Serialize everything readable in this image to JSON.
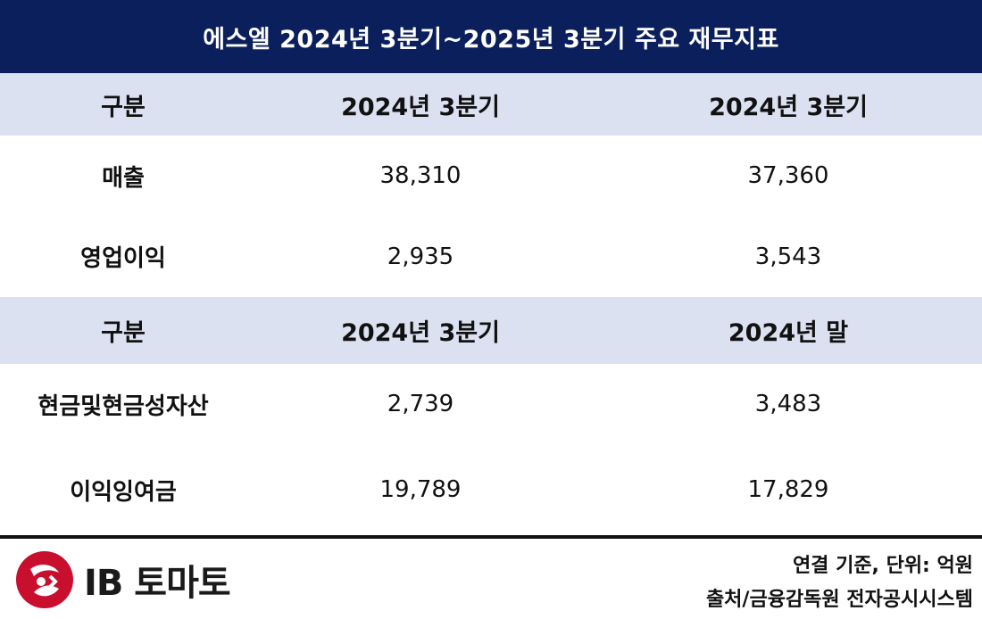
{
  "title": "에스엘 2024년 3분기~2025년 3분기 주요 재무지표",
  "section1": {
    "headers": [
      "구분",
      "2024년 3분기",
      "2024년 3분기"
    ],
    "rows": [
      {
        "label": "매출",
        "v1": "38,310",
        "v2": "37,360"
      },
      {
        "label": "영업이익",
        "v1": "2,935",
        "v2": "3,543"
      }
    ]
  },
  "section2": {
    "headers": [
      "구분",
      "2024년 3분기",
      "2024년 말"
    ],
    "rows": [
      {
        "label": "현금및현금성자산",
        "v1": "2,739",
        "v2": "3,483"
      },
      {
        "label": "이익잉여금",
        "v1": "19,789",
        "v2": "17,829"
      }
    ]
  },
  "footer": {
    "logo_text": "IB 토마토",
    "logo_color": "#c8102e",
    "note_basis": "연결 기준, 단위: 억원",
    "note_source": "출처/금융감독원 전자공시시스템"
  },
  "colors": {
    "title_bg": "#0b1f5c",
    "header_bg": "#dce1f2"
  }
}
